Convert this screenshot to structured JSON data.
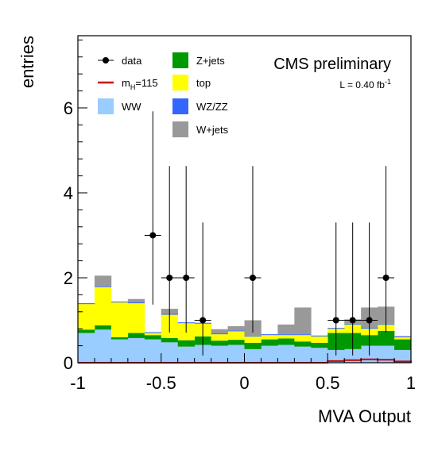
{
  "chart_data": {
    "type": "bar",
    "xlabel": "MVA Output",
    "ylabel": "entries",
    "xlim": [
      -1,
      1
    ],
    "ylim": [
      0,
      7.7
    ],
    "x_ticks": [
      "-1",
      "-0.5",
      "0",
      "0.5",
      "1"
    ],
    "x_tick_values": [
      -1,
      -0.5,
      0,
      0.5,
      1
    ],
    "y_ticks": [
      "0",
      "2",
      "4",
      "6"
    ],
    "y_tick_values": [
      0,
      2,
      4,
      6
    ],
    "annotations": {
      "title": "CMS preliminary",
      "lumi_prefix": "L = 0.40 fb",
      "lumi_sup": "-1"
    },
    "bin_edges": [
      -1.0,
      -0.9,
      -0.8,
      -0.7,
      -0.6,
      -0.5,
      -0.4,
      -0.3,
      -0.2,
      -0.1,
      0.0,
      0.1,
      0.2,
      0.3,
      0.4,
      0.5,
      0.6,
      0.7,
      0.8,
      0.9,
      1.0
    ],
    "stack": [
      {
        "name": "WW",
        "color": "#99ccff",
        "values": [
          0.7,
          0.78,
          0.55,
          0.58,
          0.55,
          0.48,
          0.38,
          0.42,
          0.4,
          0.42,
          0.32,
          0.4,
          0.42,
          0.38,
          0.35,
          0.3,
          0.32,
          0.4,
          0.4,
          0.3
        ]
      },
      {
        "name": "Z+jets",
        "color": "#009900",
        "values": [
          0.08,
          0.1,
          0.05,
          0.12,
          0.1,
          0.1,
          0.15,
          0.2,
          0.12,
          0.12,
          0.15,
          0.15,
          0.15,
          0.12,
          0.12,
          0.4,
          0.38,
          0.25,
          0.35,
          0.25
        ]
      },
      {
        "name": "top",
        "color": "#ffff00",
        "values": [
          0.6,
          0.9,
          0.82,
          0.7,
          0.05,
          0.55,
          0.4,
          0.3,
          0.15,
          0.2,
          0.15,
          0.1,
          0.08,
          0.15,
          0.15,
          0.1,
          0.2,
          0.15,
          0.15,
          0.05
        ]
      },
      {
        "name": "WZ/ZZ",
        "color": "#3366ff",
        "values": [
          0.02,
          0.02,
          0.02,
          0.02,
          0.02,
          0.02,
          0.02,
          0.02,
          0.02,
          0.02,
          0.02,
          0.02,
          0.02,
          0.02,
          0.02,
          0.02,
          0.02,
          0.02,
          0.02,
          0.02
        ]
      },
      {
        "name": "W+jets",
        "color": "#999999",
        "values": [
          0.0,
          0.25,
          0.0,
          0.08,
          0.0,
          0.12,
          0.0,
          0.0,
          0.1,
          0.1,
          0.36,
          0.0,
          0.23,
          0.63,
          0.0,
          0.0,
          0.1,
          0.48,
          0.4,
          0.01
        ]
      }
    ],
    "signal": {
      "name": "m_H=115",
      "color": "#cc0000",
      "values": [
        0.0,
        0.0,
        0.0,
        0.0,
        0.0,
        0.0,
        0.0,
        0.0,
        0.0,
        0.0,
        0.0,
        0.0,
        0.0,
        0.0,
        0.0,
        0.04,
        0.06,
        0.08,
        0.07,
        0.03
      ]
    },
    "data_points": {
      "name": "data",
      "color": "#000000",
      "x": [
        -0.55,
        -0.45,
        -0.35,
        -0.25,
        0.05,
        0.55,
        0.65,
        0.75,
        0.85
      ],
      "y": [
        3,
        2,
        2,
        1,
        2,
        1,
        1,
        1,
        2
      ],
      "err_low": [
        1.63,
        1.29,
        1.29,
        0.83,
        1.29,
        0.83,
        0.83,
        0.83,
        1.29
      ],
      "err_high": [
        2.92,
        2.63,
        2.63,
        2.3,
        2.63,
        2.3,
        2.3,
        2.3,
        2.63
      ],
      "xerr": 0.05
    },
    "legend": {
      "placement": "top-left",
      "items": [
        {
          "label": "data",
          "kind": "marker",
          "color": "#000000"
        },
        {
          "label": "Z+jets",
          "kind": "box",
          "color": "#009900"
        },
        {
          "label": "m",
          "sub": "H",
          "rest": "=115",
          "kind": "line",
          "color": "#cc0000"
        },
        {
          "label": "top",
          "kind": "box",
          "color": "#ffff00"
        },
        {
          "label": "WW",
          "kind": "box",
          "color": "#99ccff"
        },
        {
          "label": "WZ/ZZ",
          "kind": "box",
          "color": "#3366ff"
        },
        {
          "label": "W+jets",
          "kind": "box",
          "color": "#999999"
        }
      ]
    }
  }
}
